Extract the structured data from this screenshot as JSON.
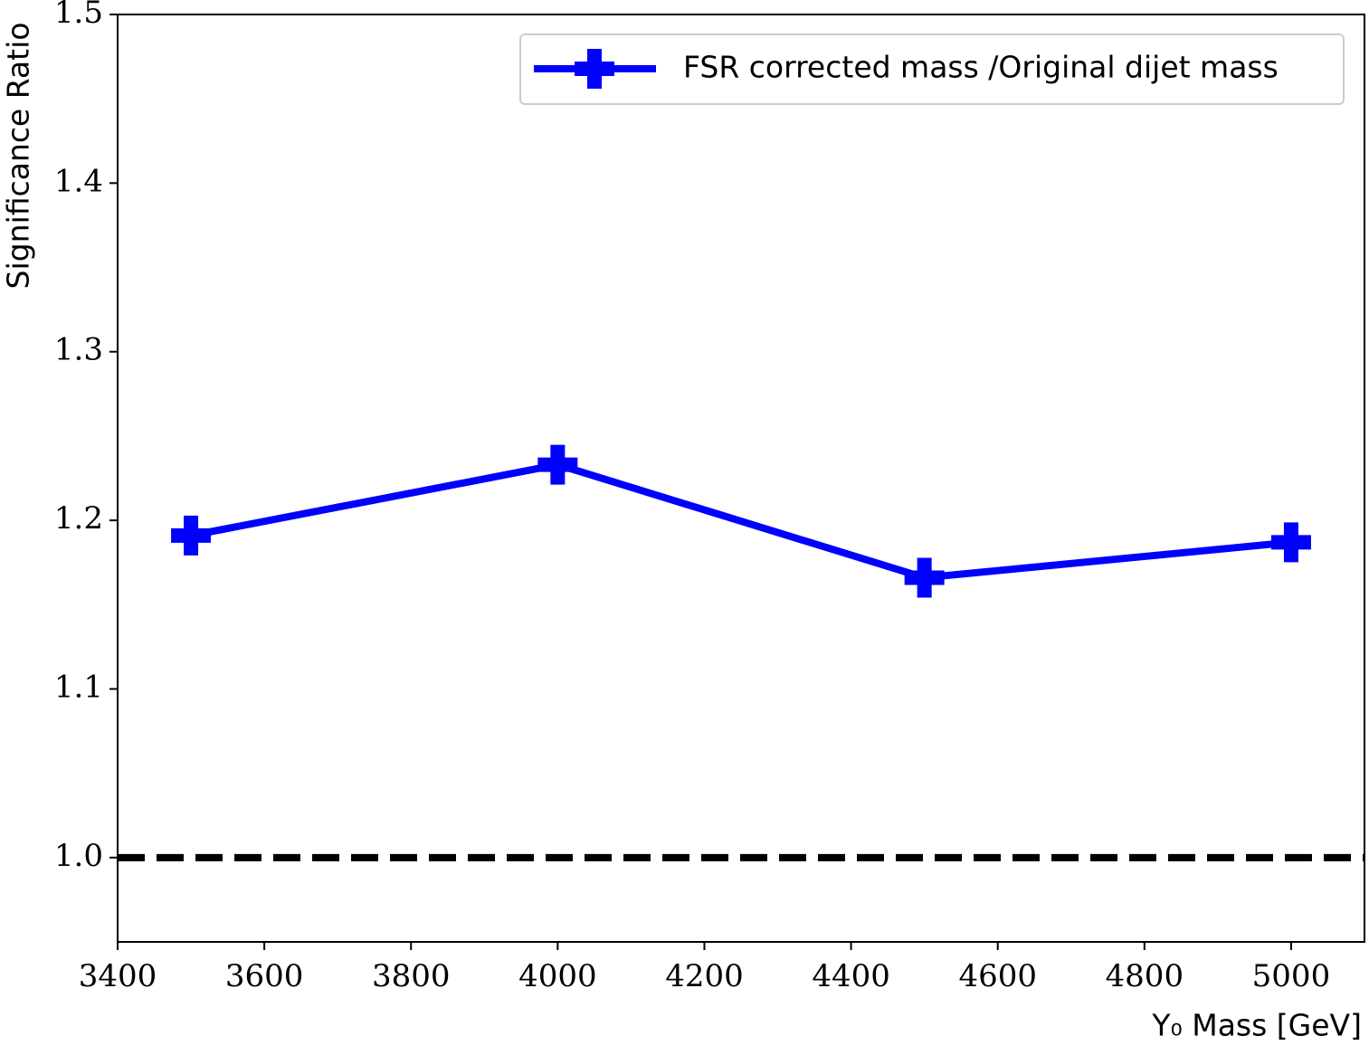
{
  "chart_data": {
    "type": "line",
    "xlabel": "Y₀ Mass [GeV]",
    "ylabel": "Significance Ratio",
    "x": [
      3500,
      4000,
      4500,
      5000
    ],
    "series": [
      {
        "name": "FSR corrected mass /Original dijet mass",
        "color": "#0000ff",
        "marker": "plus",
        "values": [
          1.191,
          1.233,
          1.166,
          1.187
        ]
      }
    ],
    "xlim": [
      3400,
      5100
    ],
    "xticks": [
      3400,
      3600,
      3800,
      4000,
      4200,
      4400,
      4600,
      4800,
      5000
    ],
    "ylim": [
      0.95,
      1.5
    ],
    "yticks": [
      {
        "value": 1,
        "label": "1.0"
      },
      1.1,
      1.2,
      1.3,
      1.4,
      1.5
    ],
    "hline": 1,
    "hline_color": "#000000",
    "grid": false,
    "legend": "upper right"
  }
}
